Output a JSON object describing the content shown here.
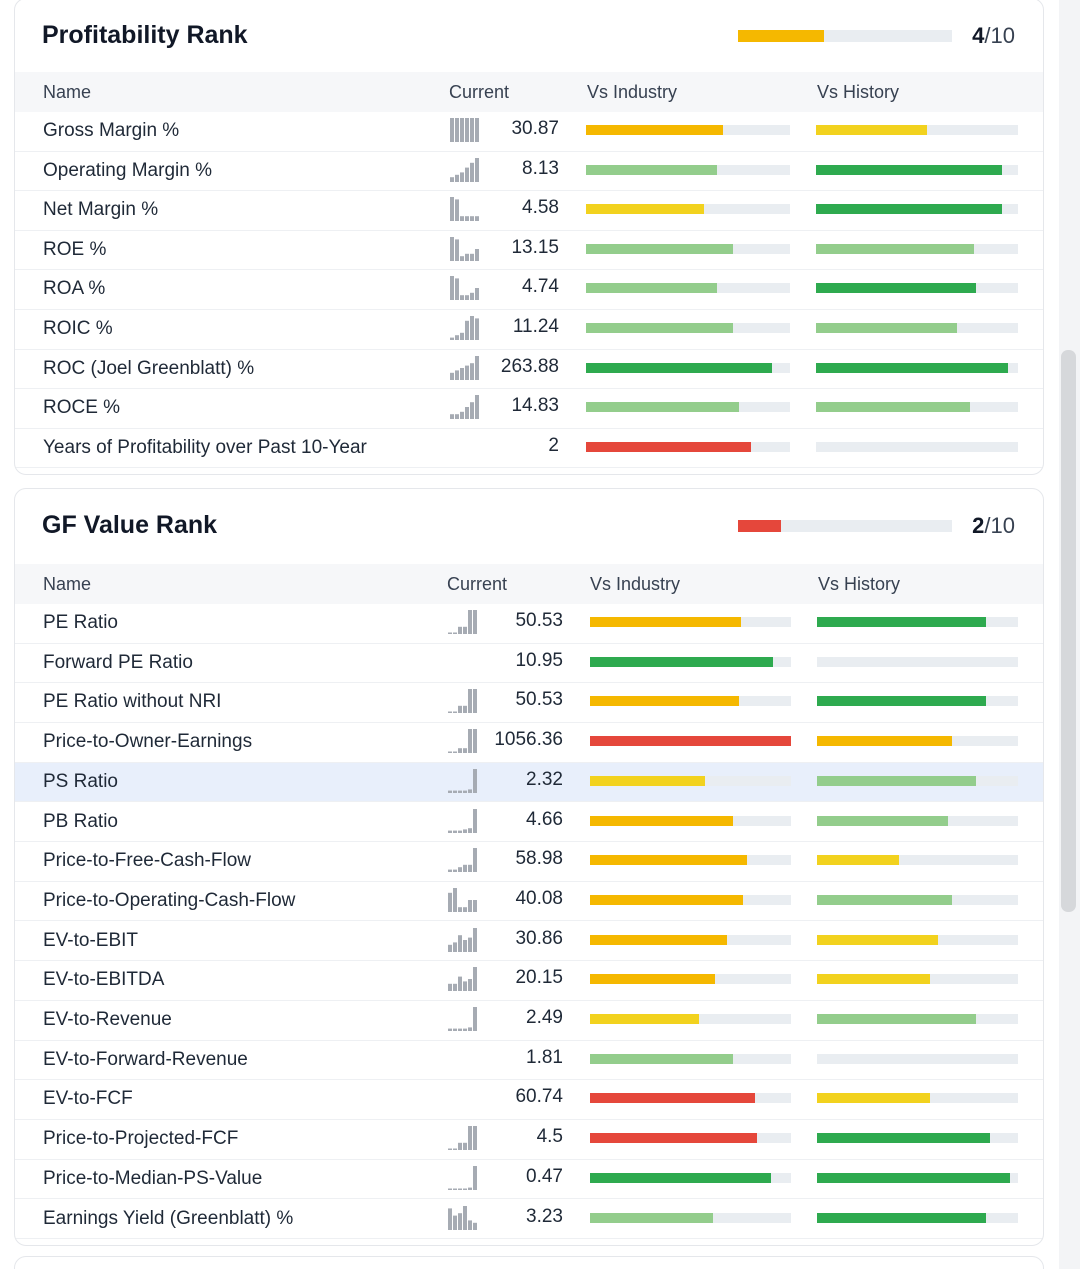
{
  "sections": [
    {
      "title": "Profitability Rank",
      "rank_score": "4",
      "rank_suffix": "/10",
      "rank_fraction": 0.4,
      "rank_color": "#f5b800",
      "columns": {
        "name": "Name",
        "current": "Current",
        "industry": "Vs Industry",
        "history": "Vs History"
      },
      "rows": [
        {
          "name": "Gross Margin %",
          "current": "30.87",
          "spark": [
            1,
            1,
            1,
            1,
            1,
            1
          ],
          "industry": 0.67,
          "industry_color": "#f5b800",
          "history": 0.55,
          "history_color": "#f2d21e"
        },
        {
          "name": "Operating Margin %",
          "current": "8.13",
          "spark": [
            0.2,
            0.3,
            0.4,
            0.6,
            0.8,
            1
          ],
          "industry": 0.64,
          "industry_color": "#93cd8c",
          "history": 0.92,
          "history_color": "#2eaa4f"
        },
        {
          "name": "Net Margin %",
          "current": "4.58",
          "spark": [
            1,
            0.9,
            0.2,
            0.2,
            0.2,
            0.2
          ],
          "industry": 0.58,
          "industry_color": "#f2d21e",
          "history": 0.92,
          "history_color": "#2eaa4f"
        },
        {
          "name": "ROE %",
          "current": "13.15",
          "spark": [
            1,
            0.9,
            0.2,
            0.3,
            0.3,
            0.5
          ],
          "industry": 0.72,
          "industry_color": "#93cd8c",
          "history": 0.78,
          "history_color": "#93cd8c"
        },
        {
          "name": "ROA %",
          "current": "4.74",
          "spark": [
            1,
            0.9,
            0.2,
            0.2,
            0.3,
            0.5
          ],
          "industry": 0.64,
          "industry_color": "#93cd8c",
          "history": 0.79,
          "history_color": "#2eaa4f"
        },
        {
          "name": "ROIC %",
          "current": "11.24",
          "spark": [
            0.1,
            0.2,
            0.3,
            0.8,
            1,
            0.9
          ],
          "industry": 0.72,
          "industry_color": "#93cd8c",
          "history": 0.7,
          "history_color": "#93cd8c"
        },
        {
          "name": "ROC (Joel Greenblatt) %",
          "current": "263.88",
          "spark": [
            0.3,
            0.4,
            0.5,
            0.6,
            0.7,
            1
          ],
          "industry": 0.91,
          "industry_color": "#2eaa4f",
          "history": 0.95,
          "history_color": "#2eaa4f"
        },
        {
          "name": "ROCE %",
          "current": "14.83",
          "spark": [
            0.2,
            0.2,
            0.3,
            0.5,
            0.7,
            1
          ],
          "industry": 0.75,
          "industry_color": "#93cd8c",
          "history": 0.76,
          "history_color": "#93cd8c"
        },
        {
          "name": "Years of Profitability over Past 10-Year",
          "current": "2",
          "spark": [],
          "industry": 0.81,
          "industry_color": "#e5473b",
          "history": 0.0,
          "history_color": "#e9edf1"
        }
      ]
    },
    {
      "title": "GF Value Rank",
      "rank_score": "2",
      "rank_suffix": "/10",
      "rank_fraction": 0.2,
      "rank_color": "#e5473b",
      "columns": {
        "name": "Name",
        "current": "Current",
        "industry": "Vs Industry",
        "history": "Vs History"
      },
      "rows": [
        {
          "name": "PE Ratio",
          "current": "50.53",
          "spark": [
            0,
            0,
            0.3,
            0.3,
            1,
            1
          ],
          "industry": 0.75,
          "industry_color": "#f5b800",
          "history": 0.84,
          "history_color": "#2eaa4f"
        },
        {
          "name": "Forward PE Ratio",
          "current": "10.95",
          "spark": [],
          "industry": 0.91,
          "industry_color": "#2eaa4f",
          "history": 0.0,
          "history_color": "#e9edf1"
        },
        {
          "name": "PE Ratio without NRI",
          "current": "50.53",
          "spark": [
            0,
            0,
            0.3,
            0.3,
            1,
            1
          ],
          "industry": 0.74,
          "industry_color": "#f5b800",
          "history": 0.84,
          "history_color": "#2eaa4f"
        },
        {
          "name": "Price-to-Owner-Earnings",
          "current": "1056.36",
          "spark": [
            0,
            0,
            0.2,
            0.2,
            1,
            1
          ],
          "industry": 1.0,
          "industry_color": "#e5473b",
          "history": 0.67,
          "history_color": "#f5b800"
        },
        {
          "name": "PS Ratio",
          "current": "2.32",
          "spark": [
            0.1,
            0.1,
            0.1,
            0.1,
            0.15,
            1
          ],
          "industry": 0.57,
          "industry_color": "#f2d21e",
          "history": 0.79,
          "history_color": "#93cd8c"
        },
        {
          "name": "PB Ratio",
          "current": "4.66",
          "spark": [
            0.1,
            0.1,
            0.1,
            0.15,
            0.2,
            1
          ],
          "industry": 0.71,
          "industry_color": "#f5b800",
          "history": 0.65,
          "history_color": "#93cd8c"
        },
        {
          "name": "Price-to-Free-Cash-Flow",
          "current": "58.98",
          "spark": [
            0.1,
            0.1,
            0.2,
            0.3,
            0.3,
            1
          ],
          "industry": 0.78,
          "industry_color": "#f5b800",
          "history": 0.41,
          "history_color": "#f2d21e"
        },
        {
          "name": "Price-to-Operating-Cash-Flow",
          "current": "40.08",
          "spark": [
            0.8,
            1,
            0.2,
            0.2,
            0.5,
            0.5
          ],
          "industry": 0.76,
          "industry_color": "#f5b800",
          "history": 0.67,
          "history_color": "#93cd8c"
        },
        {
          "name": "EV-to-EBIT",
          "current": "30.86",
          "spark": [
            0.3,
            0.4,
            0.7,
            0.5,
            0.6,
            1
          ],
          "industry": 0.68,
          "industry_color": "#f5b800",
          "history": 0.6,
          "history_color": "#f2d21e"
        },
        {
          "name": "EV-to-EBITDA",
          "current": "20.15",
          "spark": [
            0.3,
            0.3,
            0.6,
            0.4,
            0.5,
            1
          ],
          "industry": 0.62,
          "industry_color": "#f5b800",
          "history": 0.56,
          "history_color": "#f2d21e"
        },
        {
          "name": "EV-to-Revenue",
          "current": "2.49",
          "spark": [
            0.1,
            0.1,
            0.1,
            0.1,
            0.15,
            1
          ],
          "industry": 0.54,
          "industry_color": "#f2d21e",
          "history": 0.79,
          "history_color": "#93cd8c"
        },
        {
          "name": "EV-to-Forward-Revenue",
          "current": "1.81",
          "spark": [],
          "industry": 0.71,
          "industry_color": "#93cd8c",
          "history": 0.0,
          "history_color": "#e9edf1"
        },
        {
          "name": "EV-to-FCF",
          "current": "60.74",
          "spark": [],
          "industry": 0.82,
          "industry_color": "#e5473b",
          "history": 0.56,
          "history_color": "#f2d21e"
        },
        {
          "name": "Price-to-Projected-FCF",
          "current": "4.5",
          "spark": [
            0,
            0,
            0.3,
            0.3,
            1,
            1
          ],
          "industry": 0.83,
          "industry_color": "#e5473b",
          "history": 0.86,
          "history_color": "#2eaa4f"
        },
        {
          "name": "Price-to-Median-PS-Value",
          "current": "0.47",
          "spark": [
            0.05,
            0.05,
            0.05,
            0.05,
            0.1,
            1
          ],
          "industry": 0.9,
          "industry_color": "#2eaa4f",
          "history": 0.96,
          "history_color": "#2eaa4f"
        },
        {
          "name": "Earnings Yield (Greenblatt) %",
          "current": "3.23",
          "spark": [
            0.9,
            0.6,
            0.7,
            1,
            0.4,
            0.3
          ],
          "industry": 0.61,
          "industry_color": "#93cd8c",
          "history": 0.84,
          "history_color": "#2eaa4f"
        }
      ]
    }
  ]
}
